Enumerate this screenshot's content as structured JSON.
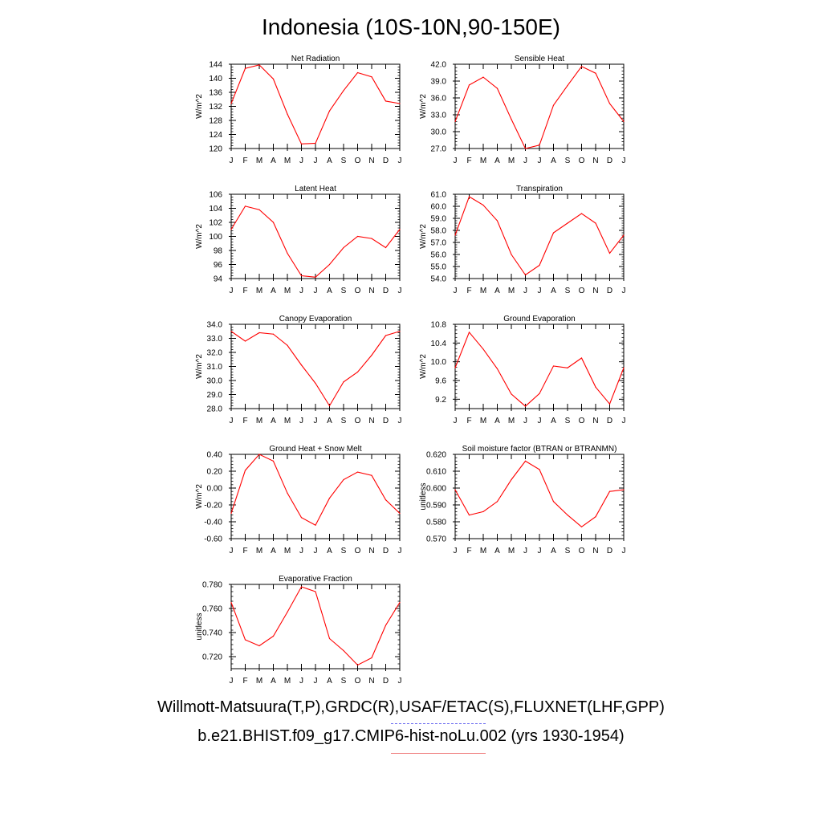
{
  "title": "Indonesia (10S-10N,90-150E)",
  "legend": {
    "observations": "Willmott-Matsuura(T,P),GRDC(R),USAF/ETAC(S),FLUXNET(LHF,GPP)",
    "model": "b.e21.BHIST.f09_g17.CMIP6-hist-noLu.002 (yrs 1930-1954)",
    "observations_color": "#6b6bf0",
    "model_color": "#f08080"
  },
  "colors": {
    "line": "#ff0000",
    "axis": "#000000"
  },
  "chart_data": [
    {
      "type": "line",
      "title": "Net Radiation",
      "ylabel": "W/m^2",
      "categories": [
        "J",
        "F",
        "M",
        "A",
        "M",
        "J",
        "J",
        "A",
        "S",
        "O",
        "N",
        "D",
        "J"
      ],
      "ylim": [
        120,
        144
      ],
      "yticks": [
        120,
        124,
        128,
        132,
        136,
        140,
        144
      ],
      "ytick_labels": [
        "120",
        "124",
        "128",
        "132",
        "136",
        "140",
        "144"
      ],
      "values": [
        132.8,
        142.8,
        143.8,
        139.8,
        129.8,
        121.3,
        121.5,
        130.7,
        136.5,
        141.6,
        140.4,
        133.5,
        132.8
      ]
    },
    {
      "type": "line",
      "title": "Sensible Heat",
      "ylabel": "W/m^2",
      "categories": [
        "J",
        "F",
        "M",
        "A",
        "M",
        "J",
        "J",
        "A",
        "S",
        "O",
        "N",
        "D",
        "J"
      ],
      "ylim": [
        27.0,
        42.0
      ],
      "yticks": [
        27,
        30,
        33,
        36,
        39,
        42
      ],
      "ytick_labels": [
        "27.0",
        "30.0",
        "33.0",
        "36.0",
        "39.0",
        "42.0"
      ],
      "values": [
        31.8,
        38.3,
        39.7,
        37.7,
        32.2,
        27.0,
        27.6,
        34.7,
        38.2,
        41.6,
        40.4,
        35.0,
        31.8
      ]
    },
    {
      "type": "line",
      "title": "Latent Heat",
      "ylabel": "W/m^2",
      "categories": [
        "J",
        "F",
        "M",
        "A",
        "M",
        "J",
        "J",
        "A",
        "S",
        "O",
        "N",
        "D",
        "J"
      ],
      "ylim": [
        94,
        106
      ],
      "yticks": [
        94,
        96,
        98,
        100,
        102,
        104,
        106
      ],
      "ytick_labels": [
        "94",
        "96",
        "98",
        "100",
        "102",
        "104",
        "106"
      ],
      "values": [
        101.0,
        104.3,
        103.8,
        102.0,
        97.6,
        94.4,
        94.2,
        96.0,
        98.4,
        100.0,
        99.7,
        98.4,
        101.0
      ]
    },
    {
      "type": "line",
      "title": "Transpiration",
      "ylabel": "W/m^2",
      "categories": [
        "J",
        "F",
        "M",
        "A",
        "M",
        "J",
        "J",
        "A",
        "S",
        "O",
        "N",
        "D",
        "J"
      ],
      "ylim": [
        54.0,
        61.0
      ],
      "yticks": [
        54,
        55,
        56,
        57,
        58,
        59,
        60,
        61
      ],
      "ytick_labels": [
        "54.0",
        "55.0",
        "56.0",
        "57.0",
        "58.0",
        "59.0",
        "60.0",
        "61.0"
      ],
      "values": [
        57.6,
        60.8,
        60.1,
        58.8,
        56.0,
        54.3,
        55.1,
        57.8,
        58.6,
        59.4,
        58.6,
        56.1,
        57.6
      ]
    },
    {
      "type": "line",
      "title": "Canopy Evaporation",
      "ylabel": "W/m^2",
      "categories": [
        "J",
        "F",
        "M",
        "A",
        "M",
        "J",
        "J",
        "A",
        "S",
        "O",
        "N",
        "D",
        "J"
      ],
      "ylim": [
        28.0,
        34.0
      ],
      "yticks": [
        28,
        29,
        30,
        31,
        32,
        33,
        34
      ],
      "ytick_labels": [
        "28.0",
        "29.0",
        "30.0",
        "31.0",
        "32.0",
        "33.0",
        "34.0"
      ],
      "values": [
        33.5,
        32.8,
        33.4,
        33.3,
        32.5,
        31.1,
        29.8,
        28.2,
        29.9,
        30.6,
        31.8,
        33.2,
        33.5
      ]
    },
    {
      "type": "line",
      "title": "Ground Evaporation",
      "ylabel": "W/m^2",
      "categories": [
        "J",
        "F",
        "M",
        "A",
        "M",
        "J",
        "J",
        "A",
        "S",
        "O",
        "N",
        "D",
        "J"
      ],
      "ylim": [
        9.0,
        10.8
      ],
      "yticks": [
        9.2,
        9.6,
        10.0,
        10.4,
        10.8
      ],
      "ytick_labels": [
        "9.2",
        "9.6",
        "10.0",
        "10.4",
        "10.8"
      ],
      "values": [
        9.87,
        10.63,
        10.27,
        9.85,
        9.31,
        9.05,
        9.32,
        9.91,
        9.87,
        10.08,
        9.46,
        9.1,
        9.87
      ]
    },
    {
      "type": "line",
      "title": "Ground Heat + Snow Melt",
      "ylabel": "W/m^2",
      "categories": [
        "J",
        "F",
        "M",
        "A",
        "M",
        "J",
        "J",
        "A",
        "S",
        "O",
        "N",
        "D",
        "J"
      ],
      "ylim": [
        -0.6,
        0.4
      ],
      "yticks": [
        -0.6,
        -0.4,
        -0.2,
        0.0,
        0.2,
        0.4
      ],
      "ytick_labels": [
        "-0.60",
        "-0.40",
        "-0.20",
        "0.00",
        "0.20",
        "0.40"
      ],
      "values": [
        -0.3,
        0.21,
        0.4,
        0.32,
        -0.06,
        -0.35,
        -0.44,
        -0.12,
        0.1,
        0.19,
        0.15,
        -0.14,
        -0.3
      ]
    },
    {
      "type": "line",
      "title": "Soil moisture factor (BTRAN or BTRANMN)",
      "ylabel": "unitless",
      "categories": [
        "J",
        "F",
        "M",
        "A",
        "M",
        "J",
        "J",
        "A",
        "S",
        "O",
        "N",
        "D",
        "J"
      ],
      "ylim": [
        0.57,
        0.62
      ],
      "yticks": [
        0.57,
        0.58,
        0.59,
        0.6,
        0.61,
        0.62
      ],
      "ytick_labels": [
        "0.570",
        "0.580",
        "0.590",
        "0.600",
        "0.610",
        "0.620"
      ],
      "values": [
        0.599,
        0.584,
        0.586,
        0.592,
        0.605,
        0.616,
        0.611,
        0.592,
        0.584,
        0.577,
        0.583,
        0.598,
        0.599
      ]
    },
    {
      "type": "line",
      "title": "Evaporative Fraction",
      "ylabel": "unitless",
      "categories": [
        "J",
        "F",
        "M",
        "A",
        "M",
        "J",
        "J",
        "A",
        "S",
        "O",
        "N",
        "D",
        "J"
      ],
      "ylim": [
        0.71,
        0.78
      ],
      "yticks": [
        0.72,
        0.74,
        0.76,
        0.78
      ],
      "ytick_labels": [
        "0.720",
        "0.740",
        "0.760",
        "0.780"
      ],
      "values": [
        0.765,
        0.734,
        0.729,
        0.737,
        0.757,
        0.778,
        0.774,
        0.735,
        0.725,
        0.713,
        0.719,
        0.746,
        0.765
      ]
    }
  ]
}
